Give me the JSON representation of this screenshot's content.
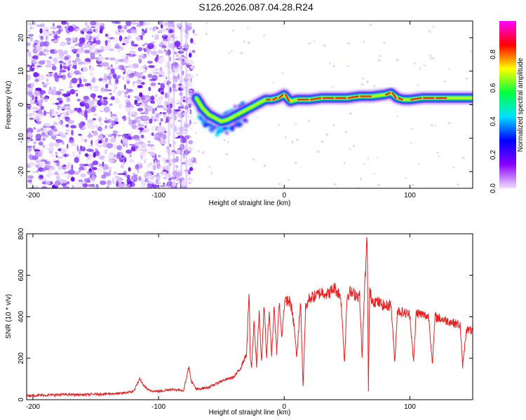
{
  "title": "S126.2026.087.04.28.R24",
  "chart_data": [
    {
      "type": "heatmap",
      "title": "S126.2026.087.04.28.R24",
      "xlabel": "Height of straight line (km)",
      "ylabel": "Frequency (Hz)",
      "xlim": [
        -205,
        150
      ],
      "ylim": [
        -25,
        25
      ],
      "xticks": [
        -200,
        -100,
        0,
        100
      ],
      "yticks": [
        -20,
        -10,
        0,
        10,
        20
      ],
      "colorbar": {
        "label": "Normalized spectral amplitude",
        "range": [
          0,
          1
        ],
        "ticks": [
          "0.0",
          "0.2",
          "0.4",
          "0.6",
          "0.8"
        ],
        "colors": [
          "#f0e0ff",
          "#8a00ff",
          "#0000ff",
          "#00e0ff",
          "#00ff40",
          "#ffff00",
          "#ff0000",
          "#ff00ff"
        ]
      },
      "ridge": {
        "description": "dominant frequency vs height",
        "x": [
          -70,
          -65,
          -60,
          -55,
          -50,
          -45,
          -40,
          -35,
          -30,
          -25,
          -20,
          -15,
          -10,
          -5,
          0,
          5,
          10,
          20,
          30,
          40,
          50,
          60,
          70,
          80,
          85,
          90,
          95,
          100,
          110,
          120,
          130,
          140,
          150
        ],
        "y": [
          2,
          -1,
          -3,
          -4,
          -5,
          -4.5,
          -3.5,
          -2.5,
          -1.5,
          -0.5,
          0.5,
          1.5,
          1.5,
          2,
          3,
          1,
          1.5,
          1.5,
          2,
          2,
          2,
          2.5,
          2.5,
          3,
          3.5,
          2,
          1.5,
          1.5,
          2,
          2,
          2,
          2,
          2
        ]
      }
    },
    {
      "type": "line",
      "xlabel": "Height of straight line (km)",
      "ylabel": "SNR (10 * v/v)",
      "xlim": [
        -205,
        150
      ],
      "ylim": [
        0,
        800
      ],
      "xticks": [
        -200,
        -100,
        0,
        100
      ],
      "yticks": [
        0,
        200,
        400,
        600,
        800
      ],
      "series": [
        {
          "name": "SNR",
          "color": "#e82020",
          "x": [
            -205,
            -190,
            -175,
            -160,
            -145,
            -130,
            -120,
            -115,
            -112,
            -108,
            -100,
            -90,
            -80,
            -76,
            -74,
            -70,
            -60,
            -50,
            -40,
            -35,
            -30,
            -28,
            -27,
            -26,
            -24,
            -22,
            -20,
            -18,
            -16,
            -14,
            -12,
            -10,
            -8,
            -6,
            -4,
            -2,
            0,
            2,
            5,
            8,
            10,
            13,
            15,
            17,
            20,
            25,
            30,
            35,
            40,
            45,
            48,
            50,
            52,
            55,
            60,
            62,
            64,
            66,
            67,
            68,
            70,
            75,
            80,
            85,
            88,
            90,
            95,
            100,
            103,
            105,
            110,
            115,
            118,
            120,
            125,
            130,
            135,
            140,
            142,
            145,
            150
          ],
          "y": [
            20,
            22,
            25,
            24,
            28,
            30,
            40,
            100,
            70,
            45,
            40,
            50,
            45,
            160,
            90,
            50,
            60,
            90,
            110,
            150,
            220,
            520,
            200,
            150,
            380,
            160,
            420,
            180,
            460,
            200,
            430,
            210,
            450,
            230,
            470,
            300,
            460,
            480,
            470,
            350,
            200,
            480,
            60,
            440,
            490,
            500,
            520,
            510,
            540,
            500,
            180,
            500,
            520,
            510,
            500,
            200,
            540,
            780,
            40,
            520,
            480,
            470,
            450,
            460,
            180,
            430,
            420,
            410,
            180,
            420,
            410,
            400,
            170,
            400,
            390,
            380,
            370,
            360,
            160,
            340,
            330
          ]
        }
      ]
    }
  ]
}
